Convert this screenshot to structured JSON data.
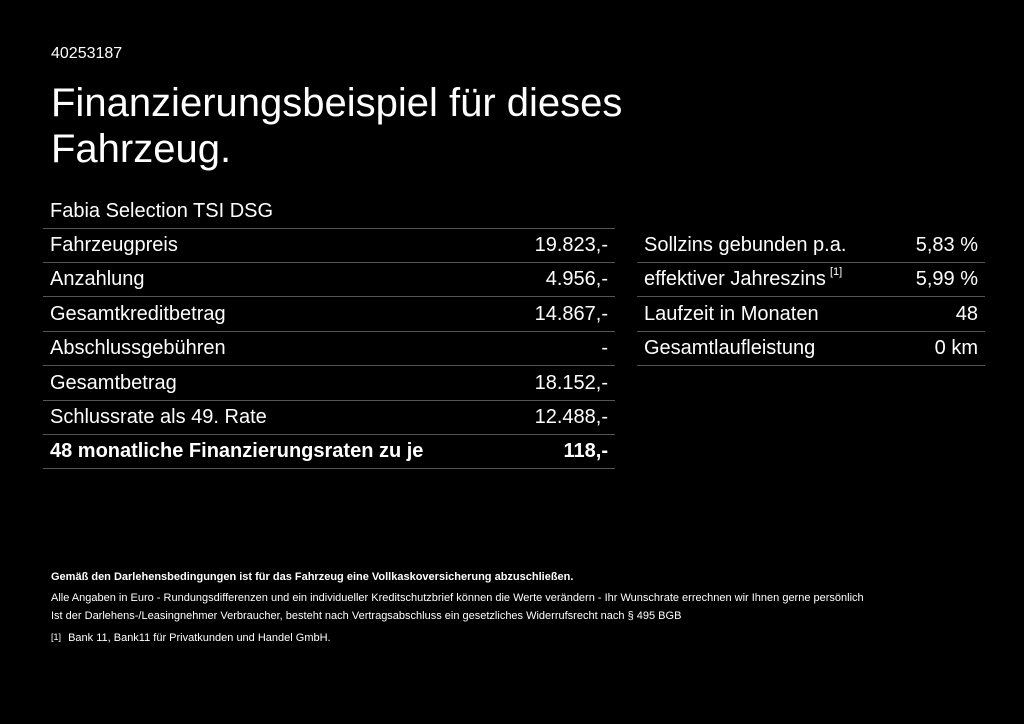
{
  "header": {
    "id": "40253187",
    "title": "Finanzierungsbeispiel für dieses Fahrzeug."
  },
  "left_table": {
    "caption": "Fabia Selection TSI DSG",
    "rows": [
      [
        "Fahrzeugpreis",
        "19.823,-"
      ],
      [
        "Anzahlung",
        "4.956,-"
      ],
      [
        "Gesamtkreditbetrag",
        "14.867,-"
      ],
      [
        "Abschlussgebühren",
        "-"
      ],
      [
        "Gesamtbetrag",
        "18.152,-"
      ],
      [
        "Schlussrate als 49. Rate",
        "12.488,-"
      ],
      [
        "48 monatliche Finanzierungsraten zu je",
        "118,-"
      ]
    ]
  },
  "right_table": {
    "rows": [
      {
        "label": "Sollzins gebunden p.a.",
        "value": "5,83 %"
      },
      {
        "label": "effektiver Jahreszins",
        "note": "[1]",
        "value": "5,99 %"
      },
      {
        "label": "Laufzeit in Monaten",
        "value": "48"
      },
      {
        "label": "Gesamtlaufleistung",
        "value": "0 km"
      }
    ]
  },
  "footer": {
    "notice": "Gemäß den Darlehensbedingungen ist für das Fahrzeug eine Vollkaskoversicherung abzuschließen.",
    "lines": [
      "Alle Angaben in Euro - Rundungsdifferenzen und ein individueller Kreditschutzbrief können die Werte verändern - Ihr Wunschrate errechnen wir Ihnen gerne persönlich",
      "Ist der Darlehens-/Leasingnehmer Verbraucher, besteht nach Vertragsabschluss ein gesetzliches Widerrufsrecht nach § 495 BGB"
    ],
    "footnote": {
      "mark": "[1]",
      "text": "Bank 11, Bank11 für Privatkunden und Handel GmbH."
    }
  }
}
